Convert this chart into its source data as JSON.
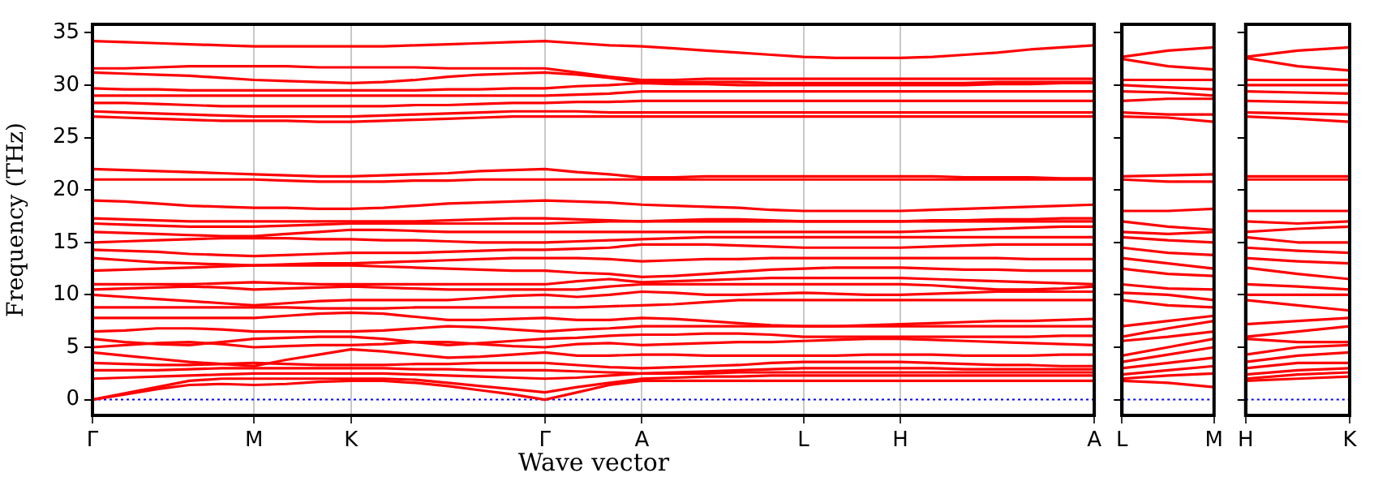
{
  "chart_data": [
    {
      "type": "line",
      "ylabel": "Frequency (THz)",
      "xlabel": "Wave vector",
      "categories": [
        "Γ",
        null,
        null,
        null,
        null,
        "M",
        null,
        null,
        "K",
        null,
        null,
        null,
        null,
        null,
        "Γ",
        null,
        null,
        "A",
        null,
        null,
        null,
        null,
        "L",
        null,
        null,
        "H",
        null,
        null,
        null,
        null,
        null,
        "A"
      ],
      "ylim": [
        -1.5,
        35.8
      ],
      "yticks": [
        0,
        5,
        10,
        15,
        20,
        25,
        30,
        35
      ],
      "grid": "x",
      "legend": false,
      "marker": "none",
      "line_style": "solid",
      "ref_lines": [
        {
          "axis": "y",
          "value": 0,
          "color": "#0000ff",
          "line_style": "dotted"
        }
      ],
      "series": [
        {
          "color": "#ff0000",
          "values": [
            0,
            0.5,
            1,
            1.4,
            1.5,
            1.4,
            1.5,
            1.7,
            1.8,
            1.8,
            1.6,
            1.3,
            0.9,
            0.5,
            0,
            0.7,
            1.4,
            1.8,
            1.8,
            1.8,
            1.8,
            1.8,
            1.8,
            1.8,
            1.8,
            1.8,
            1.8,
            1.8,
            1.8,
            1.8,
            1.8,
            1.8
          ]
        },
        {
          "color": "#ff0000",
          "values": [
            0,
            0.6,
            1.2,
            1.8,
            2,
            2,
            2,
            2,
            2,
            2,
            1.9,
            1.6,
            1.3,
            1,
            0.7,
            1.2,
            1.6,
            2,
            2.1,
            2.2,
            2.2,
            2.3,
            2.3,
            2.3,
            2.3,
            2.3,
            2.3,
            2.3,
            2.3,
            2.3,
            2.3,
            2.3
          ]
        },
        {
          "color": "#ff0000",
          "values": [
            2,
            2.1,
            2.2,
            2.3,
            2.4,
            2.5,
            2.5,
            2.5,
            2.5,
            2.5,
            2.4,
            2.3,
            2.2,
            2.1,
            2,
            2.1,
            2.3,
            2.5,
            2.5,
            2.5,
            2.6,
            2.6,
            2.6,
            2.6,
            2.6,
            2.6,
            2.6,
            2.6,
            2.6,
            2.6,
            2.6,
            2.6
          ]
        },
        {
          "color": "#ff0000",
          "values": [
            2.8,
            2.8,
            2.8,
            2.9,
            3,
            3,
            3,
            3,
            3,
            3,
            2.9,
            2.9,
            2.8,
            2.8,
            2.8,
            2.7,
            2.6,
            2.5,
            2.6,
            2.7,
            2.8,
            2.9,
            3,
            3,
            3,
            3,
            3,
            2.9,
            2.9,
            2.9,
            2.9,
            2.9
          ]
        },
        {
          "color": "#ff0000",
          "values": [
            3.5,
            3.4,
            3.3,
            3.3,
            3.4,
            3.5,
            3.4,
            3.3,
            3.3,
            3.3,
            3.4,
            3.4,
            3.5,
            3.5,
            3.5,
            3.3,
            3.1,
            3,
            3.1,
            3.2,
            3.3,
            3.5,
            3.6,
            3.6,
            3.6,
            3.6,
            3.5,
            3.4,
            3.3,
            3.3,
            3.2,
            3.2
          ]
        },
        {
          "color": "#ff0000",
          "values": [
            4.5,
            4.2,
            3.9,
            3.6,
            3.4,
            3.2,
            3.8,
            4.3,
            4.8,
            4.6,
            4.3,
            4,
            4.1,
            4.3,
            4.5,
            4.2,
            4.2,
            4.3,
            4.3,
            4.2,
            4.2,
            4.2,
            4.2,
            4.2,
            4.3,
            4.3,
            4.3,
            4.2,
            4.2,
            4.2,
            4.3,
            4.3
          ]
        },
        {
          "color": "#ff0000",
          "values": [
            5,
            5.2,
            5.4,
            5.5,
            5.3,
            5,
            5.1,
            5.2,
            5.2,
            5.3,
            5.5,
            5.5,
            5.3,
            5.1,
            5,
            5.3,
            5.4,
            5.2,
            5.3,
            5.4,
            5.5,
            5.5,
            5.6,
            5.7,
            5.8,
            5.8,
            5.7,
            5.6,
            5.5,
            5.4,
            5.3,
            5.2
          ]
        },
        {
          "color": "#ff0000",
          "values": [
            5.8,
            5.5,
            5.3,
            5.2,
            5.5,
            5.8,
            5.9,
            6,
            6,
            5.8,
            5.5,
            5.2,
            5.4,
            5.6,
            5.8,
            5.9,
            6.1,
            6.2,
            6.2,
            6.3,
            6.3,
            6.2,
            6,
            6,
            6,
            6,
            6,
            6,
            6,
            6,
            6.1,
            6.1
          ]
        },
        {
          "color": "#ff0000",
          "values": [
            6.5,
            6.6,
            6.8,
            6.8,
            6.7,
            6.5,
            6.5,
            6.5,
            6.5,
            6.6,
            6.8,
            7,
            6.9,
            6.7,
            6.5,
            6.7,
            6.8,
            7,
            7,
            7,
            7,
            7,
            7,
            7,
            7,
            7,
            7,
            7,
            7,
            7,
            7,
            7
          ]
        },
        {
          "color": "#ff0000",
          "values": [
            7.8,
            7.8,
            7.8,
            7.8,
            7.8,
            7.8,
            8,
            8.2,
            8.3,
            8.2,
            7.9,
            7.6,
            7.6,
            7.7,
            7.8,
            7.6,
            7.6,
            7.8,
            7.7,
            7.5,
            7.3,
            7.1,
            7,
            7,
            7.1,
            7.2,
            7.3,
            7.4,
            7.5,
            7.5,
            7.6,
            7.7
          ]
        },
        {
          "color": "#ff0000",
          "values": [
            8.8,
            8.8,
            8.8,
            8.8,
            8.8,
            8.8,
            8.8,
            8.7,
            8.7,
            8.7,
            8.8,
            8.8,
            8.8,
            8.8,
            8.8,
            8.8,
            8.9,
            9,
            9.1,
            9.3,
            9.5,
            9.5,
            9.5,
            9.5,
            9.5,
            9.5,
            9.5,
            9.5,
            9.5,
            9.5,
            9.5,
            9.5
          ]
        },
        {
          "color": "#ff0000",
          "values": [
            10,
            9.8,
            9.6,
            9.4,
            9.2,
            9,
            9.2,
            9.4,
            9.5,
            9.5,
            9.5,
            9.5,
            9.7,
            9.9,
            10,
            9.8,
            10,
            10.3,
            10.2,
            10,
            10,
            10.1,
            10.2,
            10.1,
            10,
            10,
            10.1,
            10.2,
            10.3,
            10.3,
            10.3,
            10.3
          ]
        },
        {
          "color": "#ff0000",
          "values": [
            10.5,
            10.6,
            10.7,
            10.8,
            10.7,
            10.5,
            10.6,
            10.7,
            10.8,
            10.7,
            10.6,
            10.5,
            10.5,
            10.5,
            10.5,
            10.5,
            10.8,
            11,
            11,
            11,
            11,
            11,
            11,
            11,
            11,
            11,
            10.9,
            10.7,
            10.5,
            10.5,
            10.6,
            10.8
          ]
        },
        {
          "color": "#ff0000",
          "values": [
            11,
            11,
            11,
            11,
            11.1,
            11.2,
            11.1,
            11,
            11,
            11,
            11,
            11,
            11,
            11,
            11,
            11.3,
            11.5,
            11.2,
            11.3,
            11.4,
            11.5,
            11.6,
            11.6,
            11.6,
            11.6,
            11.6,
            11.5,
            11.4,
            11.3,
            11.2,
            11.1,
            11
          ]
        },
        {
          "color": "#ff0000",
          "values": [
            12.3,
            12.4,
            12.5,
            12.6,
            12.7,
            12.8,
            12.8,
            12.8,
            12.8,
            12.7,
            12.6,
            12.5,
            12.4,
            12.3,
            12.3,
            12.1,
            12,
            11.7,
            11.8,
            12,
            12.2,
            12.4,
            12.5,
            12.6,
            12.6,
            12.6,
            12.5,
            12.4,
            12.4,
            12.3,
            12.3,
            12.3
          ]
        },
        {
          "color": "#ff0000",
          "values": [
            13.5,
            13.3,
            13.1,
            13,
            12.9,
            12.8,
            12.9,
            13,
            13,
            13.1,
            13.2,
            13.3,
            13.4,
            13.5,
            13.5,
            13.5,
            13.4,
            13.2,
            13.3,
            13.4,
            13.4,
            13.5,
            13.5,
            13.5,
            13.5,
            13.5,
            13.5,
            13.5,
            13.5,
            13.4,
            13.4,
            13.4
          ]
        },
        {
          "color": "#ff0000",
          "values": [
            14.3,
            14.2,
            14.1,
            13.9,
            13.8,
            13.7,
            13.8,
            13.9,
            14,
            14,
            14,
            14.1,
            14.2,
            14.3,
            14.3,
            14.4,
            14.5,
            14.8,
            14.8,
            14.8,
            14.7,
            14.6,
            14.5,
            14.5,
            14.5,
            14.5,
            14.6,
            14.7,
            14.8,
            14.8,
            14.8,
            14.8
          ]
        },
        {
          "color": "#ff0000",
          "values": [
            15,
            15.1,
            15.2,
            15.3,
            15.4,
            15.4,
            15.4,
            15.3,
            15.3,
            15.2,
            15.2,
            15.1,
            15,
            15,
            15,
            15.1,
            15.2,
            15.3,
            15.4,
            15.5,
            15.5,
            15.5,
            15.5,
            15.5,
            15.5,
            15.5,
            15.5,
            15.5,
            15.5,
            15.5,
            15.5,
            15.5
          ]
        },
        {
          "color": "#ff0000",
          "values": [
            16,
            15.9,
            15.8,
            15.7,
            15.6,
            15.6,
            15.8,
            16,
            16.2,
            16.2,
            16.1,
            16,
            16,
            16,
            16,
            16,
            16,
            16,
            16,
            16,
            16,
            16,
            16,
            16,
            16,
            16,
            16.1,
            16.2,
            16.3,
            16.4,
            16.5,
            16.5
          ]
        },
        {
          "color": "#ff0000",
          "values": [
            16.8,
            16.7,
            16.6,
            16.5,
            16.5,
            16.5,
            16.6,
            16.7,
            16.8,
            16.8,
            16.8,
            16.8,
            16.8,
            16.8,
            16.8,
            16.9,
            17,
            17,
            17,
            17,
            17,
            17,
            17,
            17,
            17,
            17,
            17,
            17,
            17,
            17,
            17,
            17
          ]
        },
        {
          "color": "#ff0000",
          "values": [
            17.3,
            17.2,
            17.1,
            17,
            17,
            17,
            17,
            17,
            17,
            17,
            17,
            17.1,
            17.2,
            17.3,
            17.3,
            17.2,
            17.1,
            17,
            17.1,
            17.2,
            17.2,
            17.1,
            17,
            17,
            17,
            17,
            17.1,
            17.1,
            17.2,
            17.2,
            17.3,
            17.3
          ]
        },
        {
          "color": "#ff0000",
          "values": [
            19,
            18.9,
            18.7,
            18.5,
            18.4,
            18.3,
            18.3,
            18.2,
            18.2,
            18.3,
            18.5,
            18.7,
            18.8,
            18.9,
            19,
            18.9,
            18.8,
            18.6,
            18.5,
            18.4,
            18.3,
            18.1,
            18,
            18,
            18,
            18,
            18.1,
            18.2,
            18.3,
            18.4,
            18.5,
            18.6
          ]
        },
        {
          "color": "#ff0000",
          "values": [
            21,
            21,
            21,
            21,
            21,
            21,
            20.9,
            20.8,
            20.8,
            20.8,
            20.9,
            20.9,
            21,
            21,
            21,
            21,
            21,
            21,
            21,
            21,
            21,
            21,
            21,
            21,
            21,
            21,
            21,
            21,
            21,
            21,
            21,
            21
          ]
        },
        {
          "color": "#ff0000",
          "values": [
            22,
            21.9,
            21.8,
            21.7,
            21.6,
            21.5,
            21.4,
            21.3,
            21.3,
            21.4,
            21.5,
            21.6,
            21.8,
            21.9,
            22,
            21.7,
            21.5,
            21.2,
            21.2,
            21.3,
            21.3,
            21.3,
            21.3,
            21.3,
            21.3,
            21.3,
            21.3,
            21.2,
            21.2,
            21.2,
            21.1,
            21.1
          ]
        },
        {
          "color": "#ff0000",
          "values": [
            27,
            26.9,
            26.8,
            26.7,
            26.6,
            26.6,
            26.6,
            26.5,
            26.5,
            26.6,
            26.7,
            26.8,
            26.9,
            27,
            27,
            27,
            27,
            27,
            27,
            27,
            27,
            27,
            27,
            27,
            27,
            27,
            27,
            27,
            27,
            27,
            27,
            27
          ]
        },
        {
          "color": "#ff0000",
          "values": [
            27.5,
            27.4,
            27.3,
            27.2,
            27.1,
            27,
            27,
            27,
            27,
            27.1,
            27.2,
            27.3,
            27.4,
            27.5,
            27.5,
            27.5,
            27.4,
            27.4,
            27.4,
            27.4,
            27.4,
            27.4,
            27.4,
            27.4,
            27.4,
            27.4,
            27.4,
            27.4,
            27.4,
            27.4,
            27.4,
            27.4
          ]
        },
        {
          "color": "#ff0000",
          "values": [
            28.3,
            28.3,
            28.2,
            28.1,
            28,
            28,
            28,
            28,
            28,
            28,
            28.1,
            28.1,
            28.2,
            28.3,
            28.3,
            28.4,
            28.4,
            28.5,
            28.5,
            28.5,
            28.5,
            28.5,
            28.5,
            28.5,
            28.5,
            28.5,
            28.5,
            28.5,
            28.5,
            28.5,
            28.5,
            28.5
          ]
        },
        {
          "color": "#ff0000",
          "values": [
            29,
            29,
            29,
            29,
            29,
            29,
            29,
            29,
            29,
            29,
            29,
            29,
            29,
            29,
            29,
            29.1,
            29.2,
            29.4,
            29.4,
            29.4,
            29.4,
            29.4,
            29.4,
            29.4,
            29.4,
            29.4,
            29.4,
            29.4,
            29.4,
            29.4,
            29.4,
            29.4
          ]
        },
        {
          "color": "#ff0000",
          "values": [
            29.7,
            29.6,
            29.6,
            29.5,
            29.5,
            29.5,
            29.5,
            29.5,
            29.5,
            29.5,
            29.5,
            29.6,
            29.6,
            29.7,
            29.7,
            29.9,
            30,
            30.2,
            30.1,
            30.1,
            30,
            30,
            30,
            30,
            30,
            30,
            30,
            30,
            30.1,
            30.1,
            30.2,
            30.2
          ]
        },
        {
          "color": "#ff0000",
          "values": [
            31.2,
            31.1,
            31,
            30.9,
            30.7,
            30.5,
            30.4,
            30.3,
            30.2,
            30.3,
            30.5,
            30.8,
            31,
            31.1,
            31.2,
            31,
            30.7,
            30.3,
            30.3,
            30.3,
            30.3,
            30.2,
            30.2,
            30.2,
            30.2,
            30.2,
            30.2,
            30.2,
            30.3,
            30.3,
            30.3,
            30.3
          ]
        },
        {
          "color": "#ff0000",
          "values": [
            31.6,
            31.6,
            31.7,
            31.8,
            31.8,
            31.8,
            31.8,
            31.7,
            31.7,
            31.7,
            31.7,
            31.6,
            31.6,
            31.6,
            31.6,
            31.2,
            30.8,
            30.5,
            30.5,
            30.6,
            30.6,
            30.6,
            30.6,
            30.6,
            30.6,
            30.6,
            30.6,
            30.6,
            30.6,
            30.6,
            30.6,
            30.6
          ]
        },
        {
          "color": "#ff0000",
          "values": [
            34.2,
            34.1,
            34,
            33.9,
            33.8,
            33.7,
            33.7,
            33.7,
            33.7,
            33.7,
            33.8,
            33.9,
            34,
            34.1,
            34.2,
            34,
            33.8,
            33.7,
            33.5,
            33.3,
            33.1,
            32.9,
            32.7,
            32.6,
            32.6,
            32.6,
            32.7,
            32.9,
            33.1,
            33.4,
            33.6,
            33.8
          ]
        }
      ]
    },
    {
      "type": "line",
      "categories": [
        "L",
        null,
        "M"
      ],
      "ylim": [
        -1.5,
        35.8
      ],
      "yticks": [
        {
          "value": 0,
          "label": null
        },
        {
          "value": 5,
          "label": null
        },
        {
          "value": 10,
          "label": null
        },
        {
          "value": 15,
          "label": null
        },
        {
          "value": 20,
          "label": null
        },
        {
          "value": 25,
          "label": null
        },
        {
          "value": 30,
          "label": null
        },
        {
          "value": 35,
          "label": null
        }
      ],
      "tick_labels": "x",
      "legend": false,
      "marker": "none",
      "line_style": "solid",
      "ref_lines": [
        {
          "axis": "y",
          "value": 0,
          "color": "#0000ff",
          "line_style": "dotted"
        }
      ],
      "series": [
        {
          "color": "#ff0000",
          "values": [
            1.8,
            1.6,
            1.2
          ]
        },
        {
          "color": "#ff0000",
          "values": [
            2,
            2.3,
            2.5
          ]
        },
        {
          "color": "#ff0000",
          "values": [
            2.4,
            2.8,
            3.2
          ]
        },
        {
          "color": "#ff0000",
          "values": [
            3,
            3.5,
            4
          ]
        },
        {
          "color": "#ff0000",
          "values": [
            3.6,
            4.3,
            5
          ]
        },
        {
          "color": "#ff0000",
          "values": [
            4.2,
            5,
            5.8
          ]
        },
        {
          "color": "#ff0000",
          "values": [
            5.6,
            6,
            6.5
          ]
        },
        {
          "color": "#ff0000",
          "values": [
            6,
            6.8,
            7.5
          ]
        },
        {
          "color": "#ff0000",
          "values": [
            7,
            7.5,
            8
          ]
        },
        {
          "color": "#ff0000",
          "values": [
            9.5,
            9,
            8.8
          ]
        },
        {
          "color": "#ff0000",
          "values": [
            10.2,
            10,
            9.5
          ]
        },
        {
          "color": "#ff0000",
          "values": [
            11,
            10.6,
            10.5
          ]
        },
        {
          "color": "#ff0000",
          "values": [
            12.5,
            12,
            11.8
          ]
        },
        {
          "color": "#ff0000",
          "values": [
            13.5,
            13,
            12.5
          ]
        },
        {
          "color": "#ff0000",
          "values": [
            14.5,
            14,
            13.8
          ]
        },
        {
          "color": "#ff0000",
          "values": [
            15.5,
            15.2,
            15
          ]
        },
        {
          "color": "#ff0000",
          "values": [
            16,
            15.8,
            16
          ]
        },
        {
          "color": "#ff0000",
          "values": [
            17,
            16.5,
            16.2
          ]
        },
        {
          "color": "#ff0000",
          "values": [
            18,
            18,
            18.2
          ]
        },
        {
          "color": "#ff0000",
          "values": [
            21,
            20.8,
            20.8
          ]
        },
        {
          "color": "#ff0000",
          "values": [
            21.3,
            21.4,
            21.5
          ]
        },
        {
          "color": "#ff0000",
          "values": [
            27,
            26.9,
            26.5
          ]
        },
        {
          "color": "#ff0000",
          "values": [
            27.4,
            27.2,
            27.2
          ]
        },
        {
          "color": "#ff0000",
          "values": [
            28.5,
            28.7,
            28.7
          ]
        },
        {
          "color": "#ff0000",
          "values": [
            29.4,
            29.3,
            29
          ]
        },
        {
          "color": "#ff0000",
          "values": [
            30,
            29.8,
            29.6
          ]
        },
        {
          "color": "#ff0000",
          "values": [
            30.5,
            30.5,
            30.5
          ]
        },
        {
          "color": "#ff0000",
          "values": [
            32.5,
            31.8,
            31.5
          ]
        },
        {
          "color": "#ff0000",
          "values": [
            32.7,
            33.3,
            33.6
          ]
        }
      ]
    },
    {
      "type": "line",
      "categories": [
        "H",
        null,
        "K"
      ],
      "ylim": [
        -1.5,
        35.8
      ],
      "yticks": [
        {
          "value": 0,
          "label": null
        },
        {
          "value": 5,
          "label": null
        },
        {
          "value": 10,
          "label": null
        },
        {
          "value": 15,
          "label": null
        },
        {
          "value": 20,
          "label": null
        },
        {
          "value": 25,
          "label": null
        },
        {
          "value": 30,
          "label": null
        },
        {
          "value": 35,
          "label": null
        }
      ],
      "tick_labels": "x",
      "legend": false,
      "marker": "none",
      "line_style": "solid",
      "ref_lines": [
        {
          "axis": "y",
          "value": 0,
          "color": "#0000ff",
          "line_style": "dotted"
        }
      ],
      "series": [
        {
          "color": "#ff0000",
          "values": [
            1.8,
            2,
            2.2
          ]
        },
        {
          "color": "#ff0000",
          "values": [
            2,
            2.4,
            2.6
          ]
        },
        {
          "color": "#ff0000",
          "values": [
            2.4,
            2.8,
            3
          ]
        },
        {
          "color": "#ff0000",
          "values": [
            3,
            3.5,
            3.5
          ]
        },
        {
          "color": "#ff0000",
          "values": [
            3.6,
            4.2,
            4.5
          ]
        },
        {
          "color": "#ff0000",
          "values": [
            4.3,
            5,
            5.2
          ]
        },
        {
          "color": "#ff0000",
          "values": [
            5.8,
            5.5,
            5.5
          ]
        },
        {
          "color": "#ff0000",
          "values": [
            6,
            6.5,
            7
          ]
        },
        {
          "color": "#ff0000",
          "values": [
            7.2,
            7.5,
            7.8
          ]
        },
        {
          "color": "#ff0000",
          "values": [
            9.5,
            9,
            8.5
          ]
        },
        {
          "color": "#ff0000",
          "values": [
            10,
            10,
            10
          ]
        },
        {
          "color": "#ff0000",
          "values": [
            11,
            10.8,
            10.5
          ]
        },
        {
          "color": "#ff0000",
          "values": [
            12.6,
            12,
            11.5
          ]
        },
        {
          "color": "#ff0000",
          "values": [
            13.5,
            13.2,
            13
          ]
        },
        {
          "color": "#ff0000",
          "values": [
            14.5,
            14.2,
            14
          ]
        },
        {
          "color": "#ff0000",
          "values": [
            15.5,
            15,
            15
          ]
        },
        {
          "color": "#ff0000",
          "values": [
            16,
            16.3,
            16.5
          ]
        },
        {
          "color": "#ff0000",
          "values": [
            17,
            16.8,
            17
          ]
        },
        {
          "color": "#ff0000",
          "values": [
            18,
            18,
            18
          ]
        },
        {
          "color": "#ff0000",
          "values": [
            21,
            21,
            21
          ]
        },
        {
          "color": "#ff0000",
          "values": [
            21.3,
            21.3,
            21.3
          ]
        },
        {
          "color": "#ff0000",
          "values": [
            27,
            26.8,
            26.5
          ]
        },
        {
          "color": "#ff0000",
          "values": [
            27.4,
            27.3,
            27.2
          ]
        },
        {
          "color": "#ff0000",
          "values": [
            28.5,
            28.4,
            28.3
          ]
        },
        {
          "color": "#ff0000",
          "values": [
            29.4,
            29.3,
            29.2
          ]
        },
        {
          "color": "#ff0000",
          "values": [
            30,
            30,
            30
          ]
        },
        {
          "color": "#ff0000",
          "values": [
            30.5,
            30.5,
            30.5
          ]
        },
        {
          "color": "#ff0000",
          "values": [
            32.6,
            31.8,
            31.4
          ]
        },
        {
          "color": "#ff0000",
          "values": [
            32.7,
            33.3,
            33.6
          ]
        }
      ]
    }
  ]
}
